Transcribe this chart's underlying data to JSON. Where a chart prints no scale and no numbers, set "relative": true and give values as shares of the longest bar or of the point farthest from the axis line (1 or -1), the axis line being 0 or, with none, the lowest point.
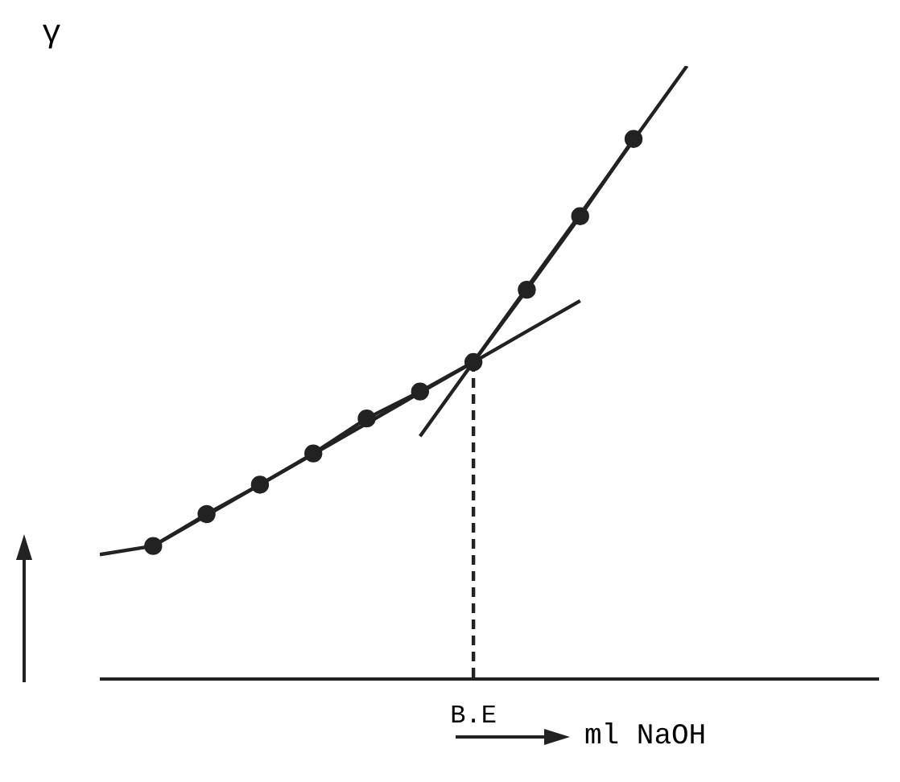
{
  "chart_data": {
    "type": "line",
    "ylabel": "γ",
    "xlabel": "ml NaOH",
    "relative": true,
    "categories": [
      null,
      null,
      null,
      null,
      null,
      null,
      null,
      null,
      null,
      null,
      null,
      null,
      null,
      null,
      null
    ],
    "annotations": [
      "B.E"
    ],
    "series": [
      {
        "color": "#222222",
        "marker": "none",
        "values": [
          0.203,
          0.217,
          0.267,
          0.317,
          0.367,
          0.417,
          0.467,
          0.517,
          0.567,
          0.617,
          null,
          null,
          null,
          null,
          null
        ]
      },
      {
        "color": "#222222",
        "marker": "none",
        "values": [
          null,
          null,
          null,
          null,
          null,
          null,
          0.396,
          0.517,
          0.638,
          0.758,
          0.879,
          1.0,
          null,
          null,
          null
        ]
      },
      {
        "color": "#222222",
        "marker": "circle",
        "values": [
          null,
          0.217,
          0.269,
          0.317,
          0.368,
          0.425,
          0.469,
          0.517,
          0.635,
          0.755,
          0.881,
          null,
          null,
          null,
          null
        ]
      }
    ]
  }
}
